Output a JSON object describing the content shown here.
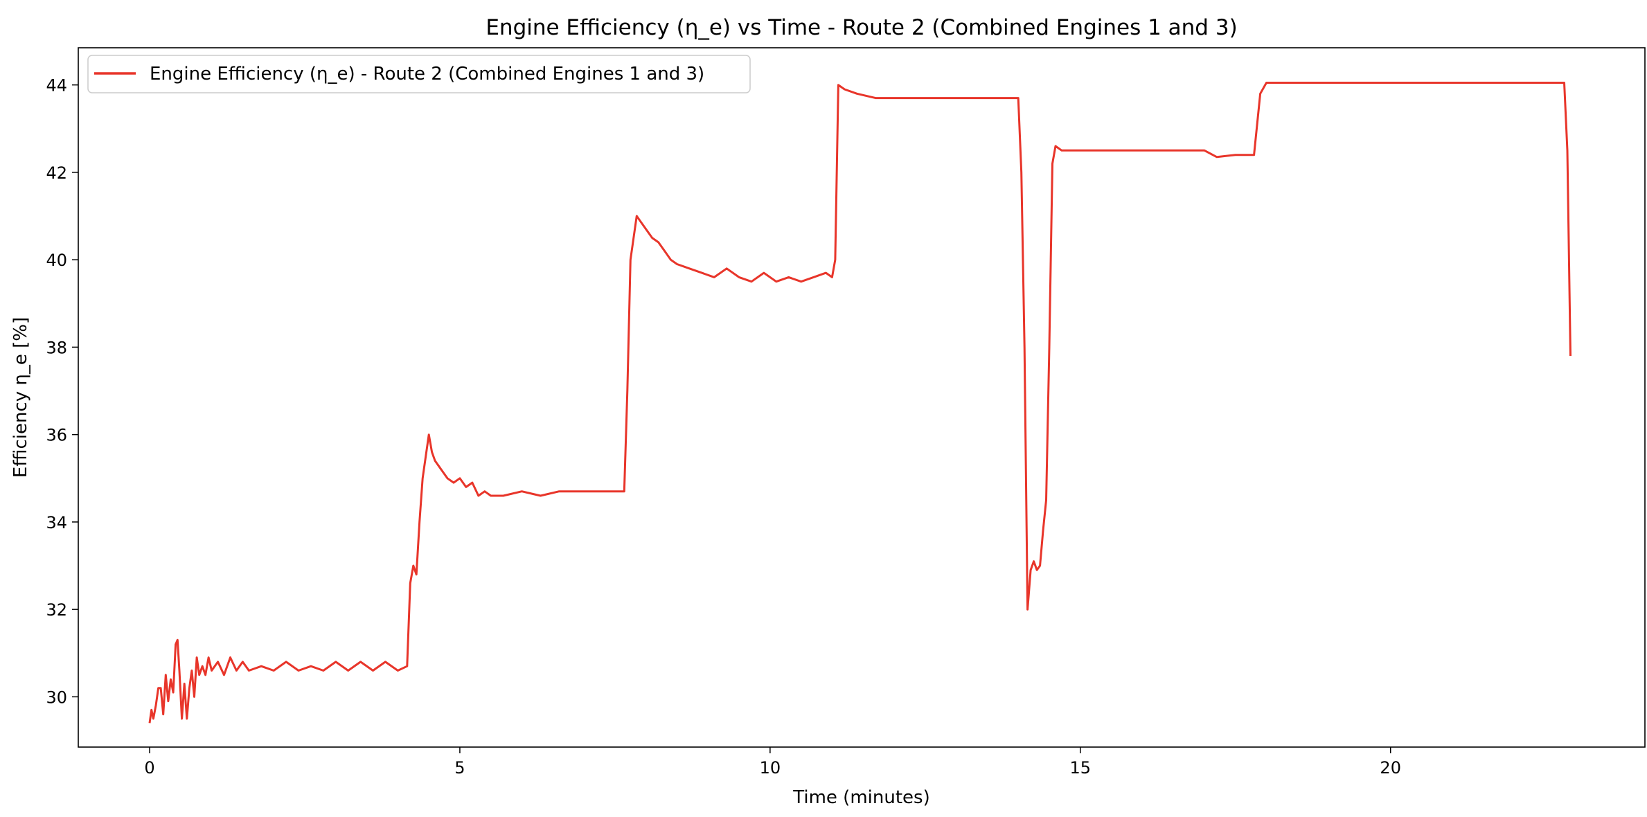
{
  "chart_data": {
    "type": "line",
    "title": "Engine Efficiency (η_e) vs Time - Route 2 (Combined Engines 1 and 3)",
    "xlabel": "Time (minutes)",
    "ylabel": "Efficiency η_e [%]",
    "xlim": [
      -1.15,
      24.1
    ],
    "ylim": [
      28.85,
      44.85
    ],
    "xticks": [
      0,
      5,
      10,
      15,
      20
    ],
    "yticks": [
      30,
      32,
      34,
      36,
      38,
      40,
      42,
      44
    ],
    "grid": false,
    "legend_position": "top-left",
    "colors": {
      "series": "#e8352a",
      "axes": "#000000",
      "background": "#ffffff"
    },
    "series": [
      {
        "name": "Engine Efficiency (η_e) - Route 2 (Combined Engines 1 and 3)",
        "x": [
          0.0,
          0.03,
          0.06,
          0.1,
          0.14,
          0.18,
          0.22,
          0.26,
          0.3,
          0.34,
          0.38,
          0.42,
          0.45,
          0.48,
          0.52,
          0.56,
          0.6,
          0.64,
          0.68,
          0.72,
          0.76,
          0.8,
          0.85,
          0.9,
          0.95,
          1.0,
          1.1,
          1.2,
          1.3,
          1.4,
          1.5,
          1.6,
          1.8,
          2.0,
          2.2,
          2.4,
          2.6,
          2.8,
          3.0,
          3.2,
          3.4,
          3.6,
          3.8,
          4.0,
          4.15,
          4.2,
          4.25,
          4.3,
          4.35,
          4.4,
          4.45,
          4.5,
          4.55,
          4.6,
          4.7,
          4.8,
          4.9,
          5.0,
          5.1,
          5.2,
          5.3,
          5.4,
          5.5,
          5.7,
          6.0,
          6.3,
          6.6,
          6.9,
          7.2,
          7.5,
          7.65,
          7.7,
          7.75,
          7.8,
          7.85,
          7.9,
          8.0,
          8.1,
          8.2,
          8.3,
          8.4,
          8.5,
          8.7,
          8.9,
          9.1,
          9.3,
          9.5,
          9.7,
          9.9,
          10.1,
          10.3,
          10.5,
          10.7,
          10.9,
          11.0,
          11.05,
          11.1,
          11.2,
          11.4,
          11.7,
          12.0,
          12.5,
          13.0,
          13.5,
          14.0,
          14.05,
          14.1,
          14.15,
          14.2,
          14.25,
          14.3,
          14.35,
          14.4,
          14.45,
          14.5,
          14.55,
          14.6,
          14.7,
          15.0,
          15.5,
          16.0,
          16.5,
          17.0,
          17.2,
          17.5,
          17.8,
          17.9,
          18.0,
          18.5,
          19.0,
          19.5,
          20.0,
          20.5,
          21.0,
          21.5,
          22.0,
          22.5,
          22.8,
          22.85,
          22.9
        ],
        "y": [
          29.4,
          29.7,
          29.5,
          29.8,
          30.2,
          30.2,
          29.6,
          30.5,
          29.9,
          30.4,
          30.1,
          31.2,
          31.3,
          30.6,
          29.5,
          30.3,
          29.5,
          30.2,
          30.6,
          30.0,
          30.9,
          30.5,
          30.7,
          30.5,
          30.9,
          30.6,
          30.8,
          30.5,
          30.9,
          30.6,
          30.8,
          30.6,
          30.7,
          30.6,
          30.8,
          30.6,
          30.7,
          30.6,
          30.8,
          30.6,
          30.8,
          30.6,
          30.8,
          30.6,
          30.7,
          32.6,
          33.0,
          32.8,
          34.0,
          35.0,
          35.5,
          36.0,
          35.6,
          35.4,
          35.2,
          35.0,
          34.9,
          35.0,
          34.8,
          34.9,
          34.6,
          34.7,
          34.6,
          34.6,
          34.7,
          34.6,
          34.7,
          34.7,
          34.7,
          34.7,
          34.7,
          37.0,
          40.0,
          40.5,
          41.0,
          40.9,
          40.7,
          40.5,
          40.4,
          40.2,
          40.0,
          39.9,
          39.8,
          39.7,
          39.6,
          39.8,
          39.6,
          39.5,
          39.7,
          39.5,
          39.6,
          39.5,
          39.6,
          39.7,
          39.6,
          40.0,
          44.0,
          43.9,
          43.8,
          43.7,
          43.7,
          43.7,
          43.7,
          43.7,
          43.7,
          42.0,
          38.0,
          32.0,
          32.9,
          33.1,
          32.9,
          33.0,
          33.8,
          34.5,
          38.0,
          42.2,
          42.6,
          42.5,
          42.5,
          42.5,
          42.5,
          42.5,
          42.5,
          42.35,
          42.4,
          42.4,
          43.8,
          44.05,
          44.05,
          44.05,
          44.05,
          44.05,
          44.05,
          44.05,
          44.05,
          44.05,
          44.05,
          44.05,
          42.5,
          37.8
        ]
      }
    ]
  }
}
